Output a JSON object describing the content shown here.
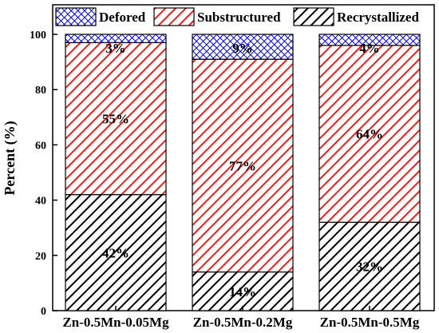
{
  "chart_data": {
    "type": "bar",
    "stacked": true,
    "title": "",
    "xlabel": "",
    "ylabel": "Percent (%)",
    "ylim": [
      0,
      100
    ],
    "yticks": [
      "0",
      "20",
      "40",
      "60",
      "80",
      "100"
    ],
    "legend_position": "top",
    "categories": [
      "Zn-0.5Mn-0.05Mg",
      "Zn-0.5Mn-0.2Mg",
      "Zn-0.5Mn-0.5Mg"
    ],
    "series": [
      {
        "name": "Recrystallized",
        "values": [
          42,
          14,
          32
        ],
        "labels": [
          "42%",
          "14%",
          "32%"
        ],
        "color": "#000000",
        "pattern": "diagonal-hatch"
      },
      {
        "name": "Substructured",
        "values": [
          55,
          77,
          64
        ],
        "labels": [
          "55%",
          "77%",
          "64%"
        ],
        "color": "#ff0000",
        "pattern": "diagonal-hatch"
      },
      {
        "name": "Defored",
        "values": [
          3,
          9,
          4
        ],
        "labels": [
          "3%",
          "9%",
          "4%"
        ],
        "color": "#0000ff",
        "pattern": "crosshatch"
      }
    ]
  }
}
